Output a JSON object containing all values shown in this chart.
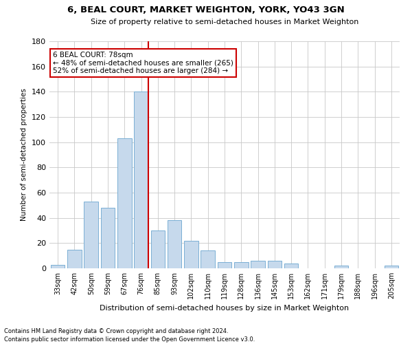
{
  "title": "6, BEAL COURT, MARKET WEIGHTON, YORK, YO43 3GN",
  "subtitle": "Size of property relative to semi-detached houses in Market Weighton",
  "xlabel": "Distribution of semi-detached houses by size in Market Weighton",
  "ylabel": "Number of semi-detached properties",
  "categories": [
    "33sqm",
    "42sqm",
    "50sqm",
    "59sqm",
    "67sqm",
    "76sqm",
    "85sqm",
    "93sqm",
    "102sqm",
    "110sqm",
    "119sqm",
    "128sqm",
    "136sqm",
    "145sqm",
    "153sqm",
    "162sqm",
    "171sqm",
    "179sqm",
    "188sqm",
    "196sqm",
    "205sqm"
  ],
  "values": [
    3,
    15,
    53,
    48,
    103,
    140,
    30,
    38,
    22,
    14,
    5,
    5,
    6,
    6,
    4,
    0,
    0,
    2,
    0,
    0,
    2
  ],
  "bar_color": "#c6d9ec",
  "bar_edge_color": "#7aafd4",
  "highlight_index": 5,
  "highlight_color": "#cc0000",
  "property_label": "6 BEAL COURT: 78sqm",
  "pct_smaller": 48,
  "count_smaller": 265,
  "pct_larger": 52,
  "count_larger": 284,
  "ylim": [
    0,
    180
  ],
  "yticks": [
    0,
    20,
    40,
    60,
    80,
    100,
    120,
    140,
    160,
    180
  ],
  "footnote1": "Contains HM Land Registry data © Crown copyright and database right 2024.",
  "footnote2": "Contains public sector information licensed under the Open Government Licence v3.0.",
  "bg_color": "#ffffff",
  "grid_color": "#c8c8c8"
}
